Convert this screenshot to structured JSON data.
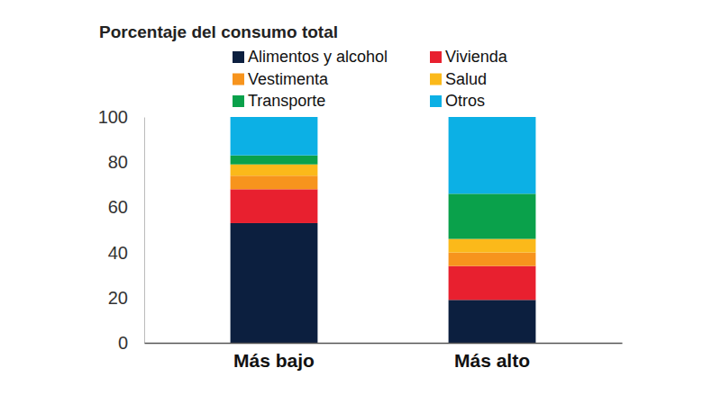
{
  "chart_data": {
    "type": "bar",
    "title": "Porcentaje del consumo total",
    "categories": [
      "Más bajo",
      "Más alto"
    ],
    "series": [
      {
        "name": "Alimentos y alcohol",
        "color": "#0c1f3f",
        "values": [
          53,
          19
        ]
      },
      {
        "name": "Vivienda",
        "color": "#e8202f",
        "values": [
          15,
          15
        ]
      },
      {
        "name": "Vestimenta",
        "color": "#f7941d",
        "values": [
          6,
          6
        ]
      },
      {
        "name": "Salud",
        "color": "#fbb91a",
        "values": [
          5,
          6
        ]
      },
      {
        "name": "Transporte",
        "color": "#0aa14b",
        "values": [
          4,
          20
        ]
      },
      {
        "name": "Otros",
        "color": "#0cb0e5",
        "values": [
          17,
          34
        ]
      }
    ],
    "ylim": [
      0,
      100
    ],
    "yticks": [
      0,
      20,
      40,
      60,
      80,
      100
    ],
    "stacked": true,
    "legend": "top",
    "grid": false
  }
}
